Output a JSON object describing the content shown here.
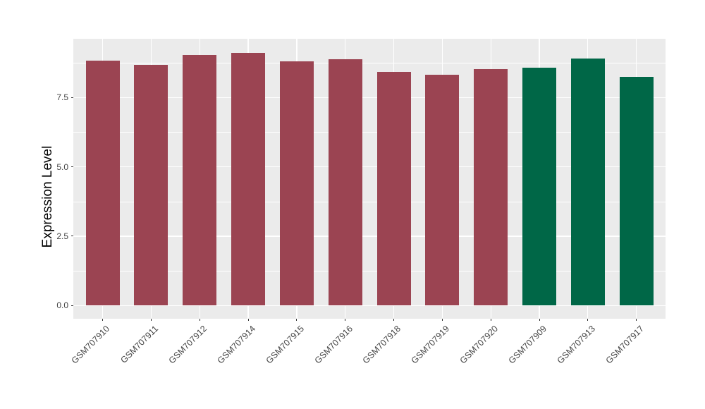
{
  "chart_data": {
    "type": "bar",
    "title": "",
    "xlabel": "",
    "ylabel": "Expression Level",
    "categories": [
      "GSM707910",
      "GSM707911",
      "GSM707912",
      "GSM707914",
      "GSM707915",
      "GSM707916",
      "GSM707918",
      "GSM707919",
      "GSM707920",
      "GSM707909",
      "GSM707913",
      "GSM707917"
    ],
    "values": [
      8.84,
      8.68,
      9.04,
      9.12,
      8.81,
      8.87,
      8.43,
      8.33,
      8.52,
      8.58,
      8.91,
      8.24
    ],
    "bar_colors": [
      "#9B4452",
      "#9B4452",
      "#9B4452",
      "#9B4452",
      "#9B4452",
      "#9B4452",
      "#9B4452",
      "#9B4452",
      "#9B4452",
      "#006747",
      "#006747",
      "#006747"
    ],
    "y_axis": {
      "ticks": [
        0.0,
        2.5,
        5.0,
        7.5
      ],
      "tick_labels": [
        "0.0",
        "2.5",
        "5.0",
        "7.5"
      ],
      "minor_ticks": [
        1.25,
        3.75,
        6.25,
        8.75
      ],
      "range": [
        -0.46,
        9.62
      ]
    },
    "grid": true,
    "legend": false,
    "colors": {
      "panel_background": "#EBEBEB",
      "grid": "#FFFFFF",
      "axis_text": "#444444",
      "tick_mark": "#333333"
    }
  }
}
